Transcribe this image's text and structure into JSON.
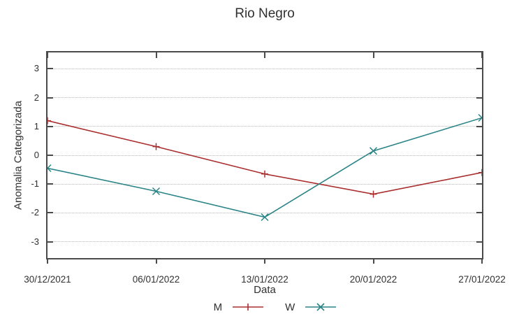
{
  "title": "Rio Negro",
  "colors": {
    "series_m": "#aa2e2e",
    "series_w": "#2b8487",
    "grid": "#b4b4b4",
    "border": "#4a4a4a",
    "text": "#303030",
    "background": "#ffffff"
  },
  "chart_data": {
    "type": "line",
    "title": "Rio Negro",
    "xlabel": "Data",
    "ylabel": "Anomalia Categorizada",
    "x": [
      "30/12/2021",
      "06/01/2022",
      "13/01/2022",
      "20/01/2022",
      "27/01/2022"
    ],
    "series": [
      {
        "name": "M",
        "marker": "plus",
        "color": "#aa2e2e",
        "values": [
          1.2,
          0.3,
          -0.65,
          -1.35,
          -0.6
        ]
      },
      {
        "name": "W",
        "marker": "cross",
        "color": "#2b8487",
        "values": [
          -0.45,
          -1.25,
          -2.15,
          0.15,
          1.3
        ]
      }
    ],
    "yticks": [
      3,
      2,
      1,
      0,
      -1,
      -2,
      -3
    ],
    "ylim": [
      -3.57,
      3.57
    ],
    "grid": true,
    "grid_style": "dotted",
    "legend_position": "bottom-center",
    "legend_entries": [
      "M",
      "W"
    ]
  }
}
